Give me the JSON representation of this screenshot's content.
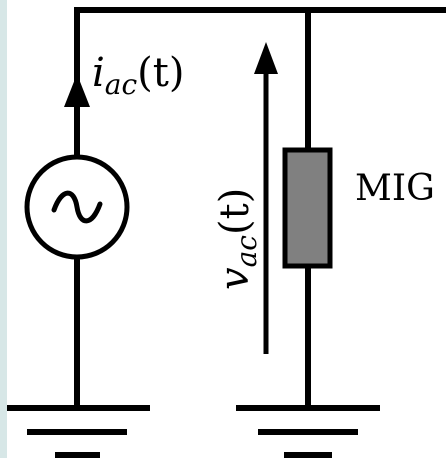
{
  "colors": {
    "wire": "#000000",
    "resistor_fill": "#808080",
    "left_edge_strip": "#b6d4d4",
    "background": "#ffffff"
  },
  "labels": {
    "current": {
      "base": "i",
      "subscript": "ac",
      "argument": "(t)"
    },
    "voltage": {
      "base": "v",
      "subscript": "ac",
      "argument": "(t)"
    },
    "component": "MIG"
  },
  "icons": {
    "ac_source": "ac-current-source-icon",
    "ground": "ground-icon"
  }
}
